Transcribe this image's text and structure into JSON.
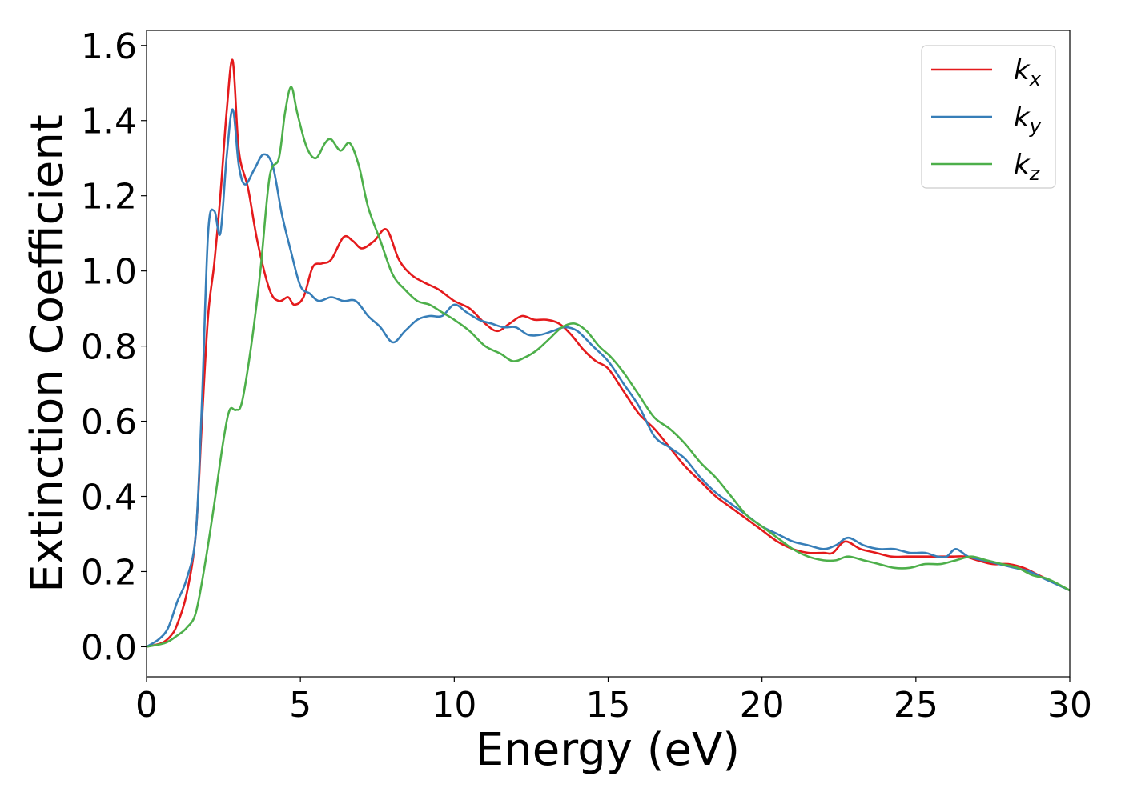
{
  "chart_data": {
    "type": "line",
    "title": "",
    "xlabel": "Energy (eV)",
    "ylabel": "Extinction Coefficient",
    "xlim": [
      0,
      30
    ],
    "ylim": [
      -0.08,
      1.64
    ],
    "xticks": [
      0,
      5,
      10,
      15,
      20,
      25,
      30
    ],
    "xtick_labels": [
      "0",
      "5",
      "10",
      "15",
      "20",
      "25",
      "30"
    ],
    "yticks": [
      0.0,
      0.2,
      0.4,
      0.6,
      0.8,
      1.0,
      1.2,
      1.4,
      1.6
    ],
    "ytick_labels": [
      "0.0",
      "0.2",
      "0.4",
      "0.6",
      "0.8",
      "1.0",
      "1.2",
      "1.4",
      "1.6"
    ],
    "grid": false,
    "legend_position": "top-right",
    "series": [
      {
        "name": "k",
        "subscript": "x",
        "color": "#e41a1c",
        "x": [
          0,
          0.5,
          0.8,
          1.0,
          1.3,
          1.6,
          1.8,
          2.0,
          2.2,
          2.4,
          2.6,
          2.8,
          3.0,
          3.3,
          3.6,
          4.0,
          4.3,
          4.6,
          4.8,
          5.1,
          5.4,
          5.7,
          6.0,
          6.4,
          6.7,
          7.0,
          7.4,
          7.8,
          8.2,
          8.6,
          9.0,
          9.5,
          10.0,
          10.5,
          11.0,
          11.4,
          11.8,
          12.2,
          12.6,
          13.0,
          13.4,
          13.8,
          14.2,
          14.6,
          15.0,
          15.5,
          16.0,
          16.5,
          17.0,
          17.5,
          18.0,
          18.5,
          19.0,
          19.5,
          20.0,
          20.5,
          21.0,
          21.5,
          22.0,
          22.3,
          22.7,
          23.2,
          23.7,
          24.2,
          24.7,
          25.2,
          25.7,
          26.2,
          26.6,
          27.0,
          27.5,
          28.0,
          28.5,
          29.0,
          29.5,
          30.0
        ],
        "y": [
          0.0,
          0.01,
          0.03,
          0.06,
          0.14,
          0.3,
          0.6,
          0.88,
          1.02,
          1.2,
          1.42,
          1.56,
          1.32,
          1.22,
          1.08,
          0.95,
          0.92,
          0.93,
          0.91,
          0.93,
          1.01,
          1.02,
          1.03,
          1.09,
          1.08,
          1.06,
          1.08,
          1.11,
          1.03,
          0.99,
          0.97,
          0.95,
          0.92,
          0.9,
          0.86,
          0.84,
          0.86,
          0.88,
          0.87,
          0.87,
          0.86,
          0.83,
          0.79,
          0.76,
          0.74,
          0.68,
          0.62,
          0.58,
          0.53,
          0.48,
          0.44,
          0.4,
          0.37,
          0.34,
          0.31,
          0.28,
          0.26,
          0.25,
          0.25,
          0.25,
          0.28,
          0.26,
          0.25,
          0.24,
          0.24,
          0.24,
          0.24,
          0.24,
          0.24,
          0.23,
          0.22,
          0.22,
          0.21,
          0.19,
          0.17,
          0.15
        ]
      },
      {
        "name": "k",
        "subscript": "y",
        "color": "#377eb8",
        "x": [
          0,
          0.4,
          0.7,
          1.0,
          1.3,
          1.6,
          1.8,
          2.0,
          2.2,
          2.4,
          2.6,
          2.8,
          3.0,
          3.2,
          3.5,
          3.8,
          4.1,
          4.4,
          4.7,
          5.0,
          5.3,
          5.6,
          6.0,
          6.4,
          6.8,
          7.2,
          7.6,
          8.0,
          8.4,
          8.8,
          9.2,
          9.6,
          10.0,
          10.4,
          10.8,
          11.2,
          11.6,
          12.0,
          12.4,
          12.8,
          13.2,
          13.6,
          14.0,
          14.5,
          15.0,
          15.5,
          16.0,
          16.5,
          17.0,
          17.5,
          18.0,
          18.5,
          19.0,
          19.5,
          20.0,
          20.5,
          21.0,
          21.5,
          22.0,
          22.4,
          22.8,
          23.3,
          23.8,
          24.3,
          24.8,
          25.3,
          25.7,
          26.0,
          26.3,
          26.7,
          27.2,
          27.7,
          28.2,
          28.7,
          29.2,
          30.0
        ],
        "y": [
          0.0,
          0.02,
          0.05,
          0.12,
          0.18,
          0.3,
          0.65,
          1.1,
          1.16,
          1.1,
          1.3,
          1.43,
          1.28,
          1.23,
          1.27,
          1.31,
          1.28,
          1.15,
          1.05,
          0.96,
          0.94,
          0.92,
          0.93,
          0.92,
          0.92,
          0.88,
          0.85,
          0.81,
          0.84,
          0.87,
          0.88,
          0.88,
          0.91,
          0.89,
          0.87,
          0.86,
          0.85,
          0.85,
          0.83,
          0.83,
          0.84,
          0.85,
          0.84,
          0.8,
          0.76,
          0.7,
          0.64,
          0.56,
          0.53,
          0.5,
          0.45,
          0.41,
          0.38,
          0.35,
          0.32,
          0.3,
          0.28,
          0.27,
          0.26,
          0.27,
          0.29,
          0.27,
          0.26,
          0.26,
          0.25,
          0.25,
          0.24,
          0.24,
          0.26,
          0.24,
          0.23,
          0.22,
          0.21,
          0.2,
          0.18,
          0.15
        ]
      },
      {
        "name": "k",
        "subscript": "z",
        "color": "#4daf4a",
        "x": [
          0,
          0.6,
          1.0,
          1.3,
          1.6,
          1.9,
          2.2,
          2.5,
          2.7,
          2.9,
          3.1,
          3.4,
          3.7,
          4.0,
          4.3,
          4.5,
          4.7,
          4.9,
          5.2,
          5.5,
          5.8,
          6.0,
          6.3,
          6.6,
          6.9,
          7.2,
          7.6,
          8.0,
          8.4,
          8.8,
          9.2,
          9.6,
          10.0,
          10.5,
          11.0,
          11.5,
          11.9,
          12.3,
          12.7,
          13.1,
          13.5,
          13.9,
          14.3,
          14.7,
          15.1,
          15.5,
          16.0,
          16.5,
          17.0,
          17.5,
          18.0,
          18.5,
          19.0,
          19.5,
          20.0,
          20.5,
          21.0,
          21.5,
          22.0,
          22.4,
          22.8,
          23.3,
          23.8,
          24.3,
          24.8,
          25.3,
          25.8,
          26.3,
          26.8,
          27.3,
          27.8,
          28.3,
          28.8,
          29.3,
          30.0
        ],
        "y": [
          0.0,
          0.01,
          0.03,
          0.05,
          0.09,
          0.22,
          0.38,
          0.55,
          0.63,
          0.63,
          0.65,
          0.8,
          1.0,
          1.25,
          1.3,
          1.42,
          1.49,
          1.42,
          1.33,
          1.3,
          1.34,
          1.35,
          1.32,
          1.34,
          1.28,
          1.17,
          1.08,
          0.99,
          0.95,
          0.92,
          0.91,
          0.89,
          0.87,
          0.84,
          0.8,
          0.78,
          0.76,
          0.77,
          0.79,
          0.82,
          0.85,
          0.86,
          0.84,
          0.8,
          0.77,
          0.73,
          0.67,
          0.61,
          0.58,
          0.54,
          0.49,
          0.45,
          0.4,
          0.35,
          0.32,
          0.29,
          0.26,
          0.24,
          0.23,
          0.23,
          0.24,
          0.23,
          0.22,
          0.21,
          0.21,
          0.22,
          0.22,
          0.23,
          0.24,
          0.23,
          0.22,
          0.21,
          0.19,
          0.18,
          0.15
        ]
      }
    ]
  }
}
